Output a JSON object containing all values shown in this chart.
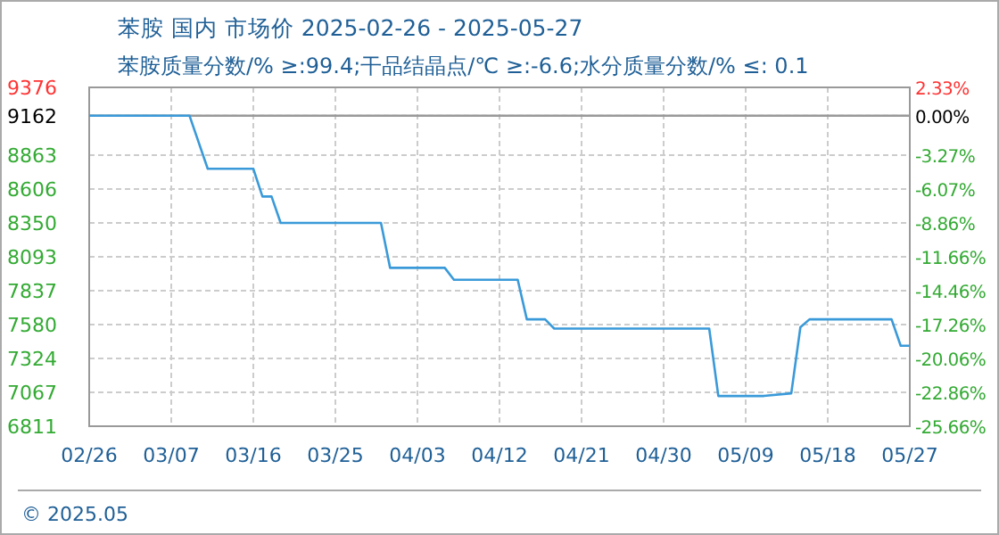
{
  "chart_data": {
    "type": "line",
    "title": "苯胺 国内 市场价 2025-02-26 - 2025-05-27",
    "subtitle": "苯胺质量分数/% ≥:99.4;干品结晶点/℃ ≥:-6.6;水分质量分数/% ≤: 0.1",
    "x": [
      "2025-02-26",
      "2025-03-09",
      "2025-03-11",
      "2025-03-16",
      "2025-03-17",
      "2025-03-18",
      "2025-03-19",
      "2025-03-30",
      "2025-03-31",
      "2025-04-06",
      "2025-04-07",
      "2025-04-14",
      "2025-04-15",
      "2025-04-17",
      "2025-04-18",
      "2025-05-05",
      "2025-05-06",
      "2025-05-11",
      "2025-05-14",
      "2025-05-15",
      "2025-05-16",
      "2025-05-25",
      "2025-05-26",
      "2025-05-27"
    ],
    "series": [
      {
        "color": "#3a9ad9",
        "values": [
          9162,
          9162,
          8760,
          8760,
          8550,
          8550,
          8350,
          8350,
          8010,
          8010,
          7920,
          7920,
          7620,
          7620,
          7550,
          7550,
          7040,
          7040,
          7060,
          7560,
          7620,
          7620,
          7420,
          7420
        ]
      }
    ],
    "xlim": [
      "2025-02-26",
      "2025-05-27"
    ],
    "xticks": [
      {
        "value": "2025-02-26",
        "label": "02/26"
      },
      {
        "value": "2025-03-07",
        "label": "03/07"
      },
      {
        "value": "2025-03-16",
        "label": "03/16"
      },
      {
        "value": "2025-03-25",
        "label": "03/25"
      },
      {
        "value": "2025-04-03",
        "label": "04/03"
      },
      {
        "value": "2025-04-12",
        "label": "04/12"
      },
      {
        "value": "2025-04-21",
        "label": "04/21"
      },
      {
        "value": "2025-04-30",
        "label": "04/30"
      },
      {
        "value": "2025-05-09",
        "label": "05/09"
      },
      {
        "value": "2025-05-18",
        "label": "05/18"
      },
      {
        "value": "2025-05-27",
        "label": "05/27"
      }
    ],
    "ylim": [
      6811,
      9376
    ],
    "yticks": [
      6811,
      7067,
      7324,
      7580,
      7837,
      8093,
      8350,
      8606,
      8863,
      9162,
      9376
    ],
    "y2lim": [
      -25.66,
      2.33
    ],
    "y2ticks": [
      {
        "value": -25.66,
        "label": "-25.66%"
      },
      {
        "value": -22.86,
        "label": "-22.86%"
      },
      {
        "value": -20.06,
        "label": "-20.06%"
      },
      {
        "value": -17.26,
        "label": "-17.26%"
      },
      {
        "value": -14.46,
        "label": "-14.46%"
      },
      {
        "value": -11.66,
        "label": "-11.66%"
      },
      {
        "value": -8.86,
        "label": "-8.86%"
      },
      {
        "value": -6.07,
        "label": "-6.07%"
      },
      {
        "value": -3.27,
        "label": "-3.27%"
      },
      {
        "value": 0,
        "label": "0.00%"
      },
      {
        "value": 2.33,
        "label": "2.33%"
      }
    ],
    "ref_lines": [
      {
        "axis": "y",
        "value": 9162,
        "color": "#999999",
        "line_style": "solid"
      }
    ],
    "grid": true,
    "marker": "none",
    "line_style": "solid",
    "annotations": [
      "© 2025.05"
    ]
  }
}
